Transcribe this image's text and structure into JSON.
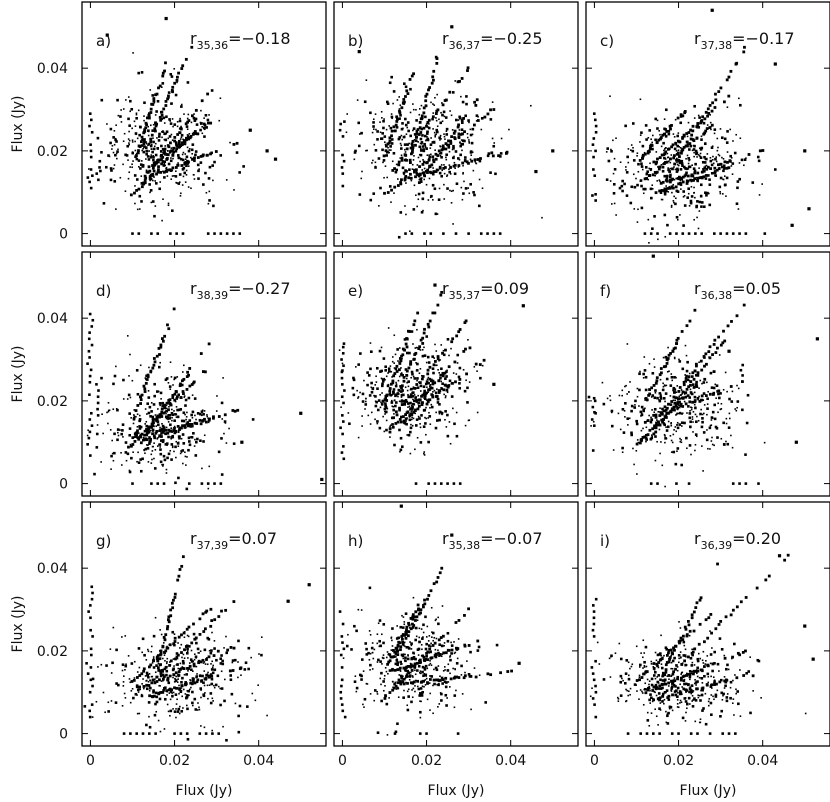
{
  "figure": {
    "xlabel": "Flux (Jy)",
    "ylabel": "Flux (Jy)",
    "xticks": [
      "0",
      "0.02",
      "0.04"
    ],
    "yticks": [
      "0",
      "0.02",
      "0.04"
    ],
    "marker_color": "#000000",
    "frame_color": "#000000"
  },
  "chart_data": [
    {
      "type": "scatter",
      "panel": "a)",
      "title": "a)",
      "r_label": "r",
      "r_sub": "35,36",
      "r_value": "=−0.18",
      "xlim": [
        -0.002,
        0.056
      ],
      "ylim": [
        -0.003,
        0.056
      ],
      "xticks": [
        0,
        0.02,
        0.04
      ],
      "yticks": [
        0,
        0.02,
        0.04
      ],
      "xlabel": "",
      "ylabel": "Flux (Jy)",
      "cluster": {
        "cx": 0.017,
        "cy": 0.021,
        "sx": 0.007,
        "sy": 0.0065,
        "n": 420
      },
      "rays": [
        [
          0.01,
          0.0095,
          0.027,
          0.027
        ],
        [
          0.011,
          0.019,
          0.018,
          0.041
        ],
        [
          0.014,
          0.016,
          0.03,
          0.028
        ],
        [
          0.015,
          0.014,
          0.035,
          0.022
        ],
        [
          0.012,
          0.012,
          0.028,
          0.034
        ],
        [
          0.013,
          0.02,
          0.024,
          0.045
        ]
      ],
      "stacks": [
        [
          0.0,
          0.011,
          0.032
        ],
        [
          0.002,
          0.013,
          0.018
        ]
      ],
      "floor": [
        0.01,
        0.038
      ],
      "outliers": [
        [
          0.004,
          0.048
        ],
        [
          0.018,
          0.052
        ],
        [
          0.038,
          0.025
        ],
        [
          0.042,
          0.02
        ],
        [
          0.044,
          0.018
        ]
      ]
    },
    {
      "type": "scatter",
      "panel": "b)",
      "title": "b)",
      "r_label": "r",
      "r_sub": "36,37",
      "r_value": "=−0.25",
      "xlim": [
        -0.002,
        0.056
      ],
      "ylim": [
        -0.003,
        0.056
      ],
      "xticks": [
        0,
        0.02,
        0.04
      ],
      "yticks": [
        0,
        0.02,
        0.04
      ],
      "xlabel": "",
      "ylabel": "",
      "cluster": {
        "cx": 0.02,
        "cy": 0.021,
        "sx": 0.008,
        "sy": 0.007,
        "n": 460
      },
      "rays": [
        [
          0.01,
          0.0095,
          0.036,
          0.03
        ],
        [
          0.01,
          0.019,
          0.018,
          0.042
        ],
        [
          0.012,
          0.015,
          0.03,
          0.04
        ],
        [
          0.014,
          0.013,
          0.04,
          0.02
        ],
        [
          0.016,
          0.017,
          0.024,
          0.047
        ],
        [
          0.018,
          0.012,
          0.034,
          0.035
        ]
      ],
      "stacks": [
        [
          0.0,
          0.01,
          0.03
        ]
      ],
      "floor": [
        0.015,
        0.038
      ],
      "outliers": [
        [
          0.004,
          0.044
        ],
        [
          0.026,
          0.05
        ],
        [
          0.05,
          0.02
        ],
        [
          0.046,
          0.015
        ]
      ]
    },
    {
      "type": "scatter",
      "panel": "c)",
      "title": "c)",
      "r_label": "r",
      "r_sub": "37,38",
      "r_value": "=−0.17",
      "xlim": [
        -0.002,
        0.056
      ],
      "ylim": [
        -0.003,
        0.056
      ],
      "xticks": [
        0,
        0.02,
        0.04
      ],
      "yticks": [
        0,
        0.02,
        0.04
      ],
      "xlabel": "",
      "ylabel": "",
      "cluster": {
        "cx": 0.02,
        "cy": 0.016,
        "sx": 0.008,
        "sy": 0.006,
        "n": 440
      },
      "rays": [
        [
          0.012,
          0.013,
          0.028,
          0.026
        ],
        [
          0.014,
          0.017,
          0.032,
          0.033
        ],
        [
          0.016,
          0.012,
          0.04,
          0.02
        ],
        [
          0.011,
          0.018,
          0.022,
          0.03
        ],
        [
          0.018,
          0.015,
          0.036,
          0.045
        ],
        [
          0.015,
          0.01,
          0.032,
          0.016
        ]
      ],
      "stacks": [
        [
          0.0,
          0.008,
          0.03
        ]
      ],
      "floor": [
        0.012,
        0.042
      ],
      "outliers": [
        [
          0.028,
          0.054
        ],
        [
          0.043,
          0.041
        ],
        [
          0.05,
          0.02
        ],
        [
          0.051,
          0.006
        ],
        [
          0.047,
          0.002
        ]
      ]
    },
    {
      "type": "scatter",
      "panel": "d)",
      "title": "d)",
      "r_label": "r",
      "r_sub": "38,39",
      "r_value": "=−0.27",
      "xlim": [
        -0.002,
        0.056
      ],
      "ylim": [
        -0.003,
        0.056
      ],
      "xticks": [
        0,
        0.02,
        0.04
      ],
      "yticks": [
        0,
        0.02,
        0.04
      ],
      "xlabel": "",
      "ylabel": "Flux (Jy)",
      "cluster": {
        "cx": 0.017,
        "cy": 0.014,
        "sx": 0.007,
        "sy": 0.006,
        "n": 400
      },
      "rays": [
        [
          0.009,
          0.0085,
          0.028,
          0.028
        ],
        [
          0.01,
          0.011,
          0.03,
          0.016
        ],
        [
          0.012,
          0.01,
          0.036,
          0.018
        ],
        [
          0.011,
          0.018,
          0.02,
          0.042
        ],
        [
          0.014,
          0.013,
          0.028,
          0.034
        ]
      ],
      "stacks": [
        [
          0.0,
          0.008,
          0.042
        ],
        [
          0.002,
          0.012,
          0.026
        ]
      ],
      "floor": [
        0.01,
        0.032
      ],
      "outliers": [
        [
          0.036,
          0.01
        ],
        [
          0.05,
          0.017
        ],
        [
          0.055,
          0.001
        ]
      ]
    },
    {
      "type": "scatter",
      "panel": "e)",
      "title": "e)",
      "r_label": "r",
      "r_sub": "35,37",
      "r_value": "=0.09",
      "xlim": [
        -0.002,
        0.056
      ],
      "ylim": [
        -0.003,
        0.056
      ],
      "xticks": [
        0,
        0.02,
        0.04
      ],
      "yticks": [
        0,
        0.02,
        0.04
      ],
      "xlabel": "",
      "ylabel": "",
      "cluster": {
        "cx": 0.016,
        "cy": 0.022,
        "sx": 0.007,
        "sy": 0.006,
        "n": 440
      },
      "rays": [
        [
          0.011,
          0.0125,
          0.03,
          0.033
        ],
        [
          0.01,
          0.019,
          0.018,
          0.042
        ],
        [
          0.012,
          0.016,
          0.03,
          0.04
        ],
        [
          0.014,
          0.015,
          0.034,
          0.03
        ],
        [
          0.013,
          0.021,
          0.024,
          0.047
        ]
      ],
      "stacks": [
        [
          0.0,
          0.006,
          0.034
        ]
      ],
      "floor": [
        0.016,
        0.03
      ],
      "outliers": [
        [
          0.036,
          0.024
        ],
        [
          0.043,
          0.043
        ],
        [
          0.022,
          0.048
        ]
      ]
    },
    {
      "type": "scatter",
      "panel": "f)",
      "title": "f)",
      "r_label": "r",
      "r_sub": "36,38",
      "r_value": "=0.05",
      "xlim": [
        -0.002,
        0.056
      ],
      "ylim": [
        -0.003,
        0.056
      ],
      "xticks": [
        0,
        0.02,
        0.04
      ],
      "yticks": [
        0,
        0.02,
        0.04
      ],
      "xlabel": "",
      "ylabel": "",
      "cluster": {
        "cx": 0.02,
        "cy": 0.018,
        "sx": 0.008,
        "sy": 0.006,
        "n": 420
      },
      "rays": [
        [
          0.01,
          0.0095,
          0.028,
          0.027
        ],
        [
          0.012,
          0.015,
          0.036,
          0.025
        ],
        [
          0.014,
          0.012,
          0.032,
          0.036
        ],
        [
          0.016,
          0.017,
          0.036,
          0.044
        ],
        [
          0.012,
          0.02,
          0.024,
          0.042
        ]
      ],
      "stacks": [
        [
          0.0,
          0.008,
          0.02
        ]
      ],
      "floor": [
        0.012,
        0.04
      ],
      "outliers": [
        [
          0.014,
          0.055
        ],
        [
          0.053,
          0.035
        ],
        [
          0.032,
          0.032
        ],
        [
          0.048,
          0.01
        ]
      ]
    },
    {
      "type": "scatter",
      "panel": "g)",
      "title": "g)",
      "r_label": "r",
      "r_sub": "37,39",
      "r_value": "=0.07",
      "xlim": [
        -0.002,
        0.056
      ],
      "ylim": [
        -0.003,
        0.056
      ],
      "xticks": [
        0,
        0.02,
        0.04
      ],
      "yticks": [
        0,
        0.02,
        0.04
      ],
      "xlabel": "Flux (Jy)",
      "ylabel": "Flux (Jy)",
      "cluster": {
        "cx": 0.02,
        "cy": 0.014,
        "sx": 0.008,
        "sy": 0.005,
        "n": 420
      },
      "rays": [
        [
          0.01,
          0.0125,
          0.029,
          0.031
        ],
        [
          0.012,
          0.011,
          0.034,
          0.021
        ],
        [
          0.014,
          0.009,
          0.036,
          0.016
        ],
        [
          0.016,
          0.015,
          0.022,
          0.043
        ],
        [
          0.015,
          0.013,
          0.04,
          0.038
        ]
      ],
      "stacks": [
        [
          0.0,
          0.004,
          0.036
        ]
      ],
      "floor": [
        0.008,
        0.032
      ],
      "outliers": [
        [
          0.047,
          0.032
        ],
        [
          0.052,
          0.036
        ]
      ]
    },
    {
      "type": "scatter",
      "panel": "h)",
      "title": "h)",
      "r_label": "r",
      "r_sub": "35,38",
      "r_value": "=−0.07",
      "xlim": [
        -0.002,
        0.056
      ],
      "ylim": [
        -0.003,
        0.056
      ],
      "xticks": [
        0,
        0.02,
        0.04
      ],
      "yticks": [
        0,
        0.02,
        0.04
      ],
      "xlabel": "Flux (Jy)",
      "ylabel": "",
      "cluster": {
        "cx": 0.016,
        "cy": 0.017,
        "sx": 0.007,
        "sy": 0.006,
        "n": 420
      },
      "rays": [
        [
          0.01,
          0.0085,
          0.03,
          0.03
        ],
        [
          0.011,
          0.017,
          0.018,
          0.031
        ],
        [
          0.012,
          0.015,
          0.034,
          0.023
        ],
        [
          0.014,
          0.012,
          0.04,
          0.015
        ],
        [
          0.013,
          0.019,
          0.024,
          0.04
        ]
      ],
      "stacks": [
        [
          0.0,
          0.004,
          0.03
        ]
      ],
      "floor": [
        0.008,
        0.032
      ],
      "outliers": [
        [
          0.014,
          0.055
        ],
        [
          0.026,
          0.048
        ],
        [
          0.042,
          0.017
        ]
      ]
    },
    {
      "type": "scatter",
      "panel": "i)",
      "title": "i)",
      "r_label": "r",
      "r_sub": "36,39",
      "r_value": "=0.20",
      "xlim": [
        -0.002,
        0.056
      ],
      "ylim": [
        -0.003,
        0.056
      ],
      "xticks": [
        0,
        0.02,
        0.04
      ],
      "yticks": [
        0,
        0.02,
        0.04
      ],
      "xlabel": "Flux (Jy)",
      "ylabel": "",
      "cluster": {
        "cx": 0.02,
        "cy": 0.013,
        "sx": 0.008,
        "sy": 0.005,
        "n": 420
      },
      "rays": [
        [
          0.01,
          0.0125,
          0.03,
          0.031
        ],
        [
          0.012,
          0.01,
          0.036,
          0.02
        ],
        [
          0.014,
          0.008,
          0.04,
          0.015
        ],
        [
          0.016,
          0.014,
          0.03,
          0.042
        ],
        [
          0.015,
          0.011,
          0.046,
          0.043
        ]
      ],
      "stacks": [
        [
          0.0,
          0.004,
          0.034
        ]
      ],
      "floor": [
        0.008,
        0.034
      ],
      "outliers": [
        [
          0.052,
          0.018
        ],
        [
          0.05,
          0.026
        ],
        [
          0.044,
          0.043
        ]
      ]
    }
  ]
}
